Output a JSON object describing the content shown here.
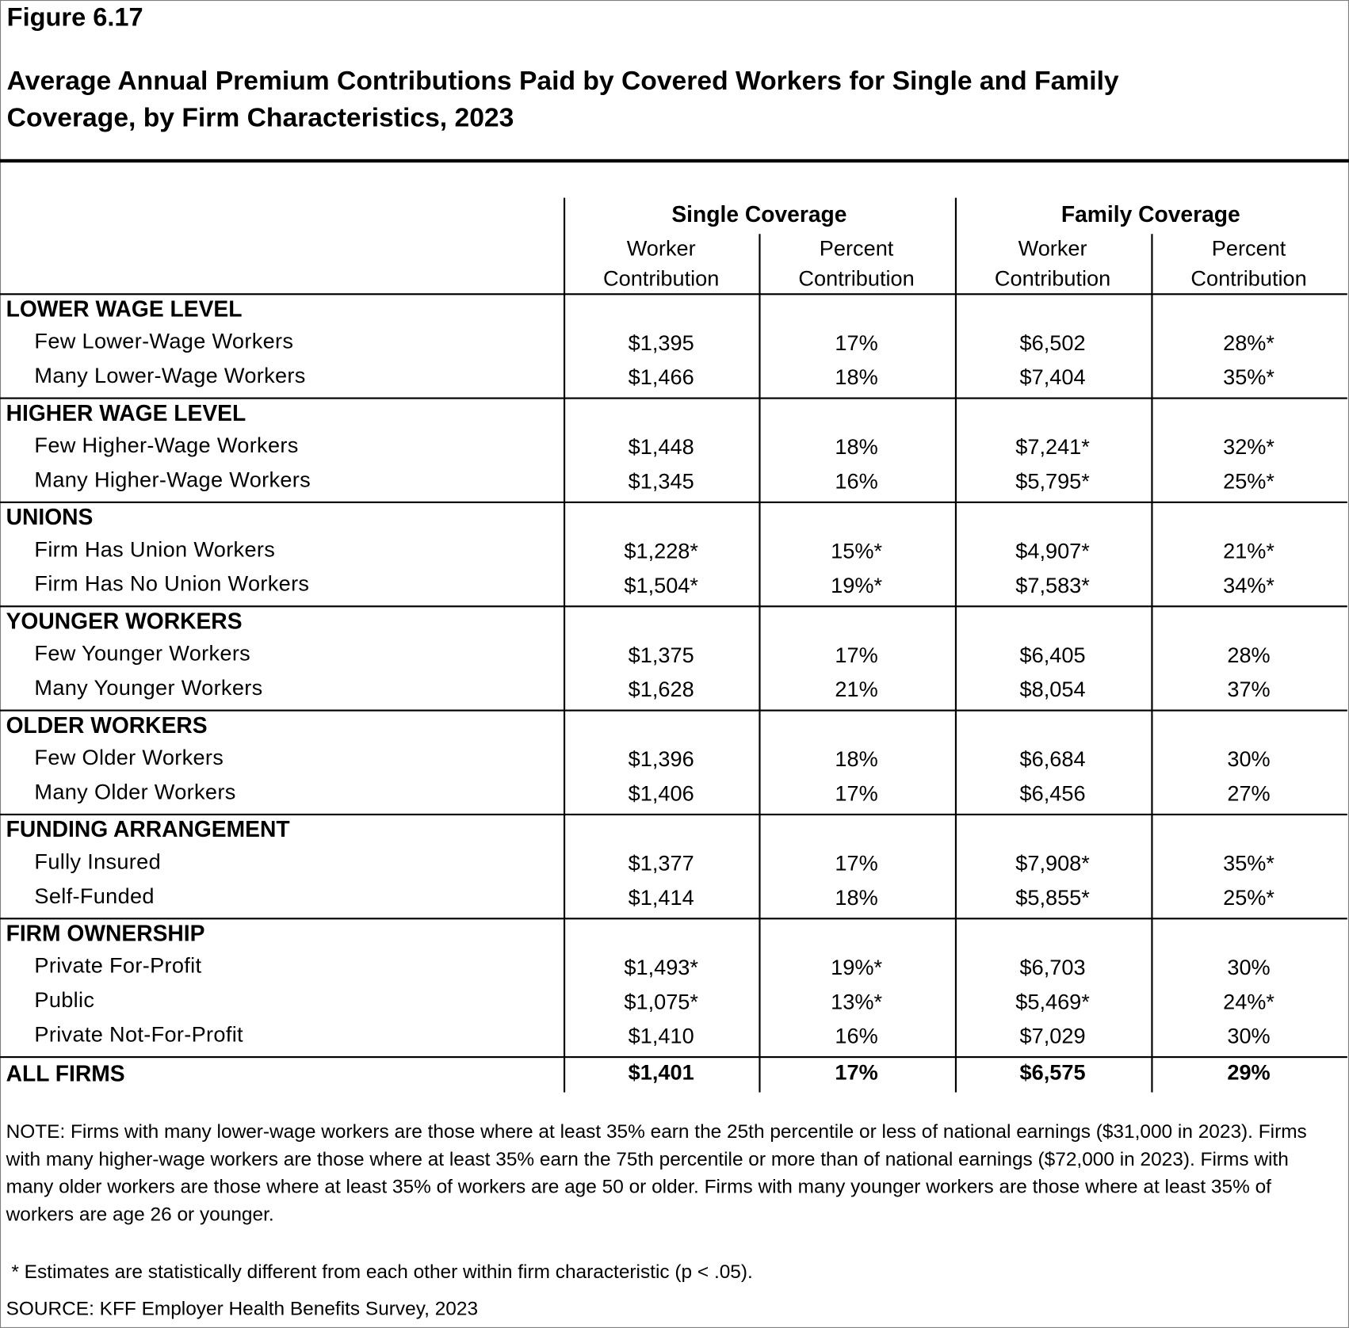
{
  "header": {
    "figure": "Figure 6.17",
    "title": "Average Annual Premium Contributions Paid by Covered Workers for Single and Family Coverage, by Firm Characteristics, 2023"
  },
  "table": {
    "groups": [
      "Single Coverage",
      "Family Coverage"
    ],
    "columns": [
      "Worker Contribution",
      "Percent Contribution",
      "Worker Contribution",
      "Percent Contribution"
    ],
    "sections": [
      {
        "title": "LOWER WAGE LEVEL",
        "rows": [
          {
            "label": "Few Lower-Wage Workers",
            "cells": [
              "$1,395",
              "17%",
              "$6,502",
              "28%*"
            ]
          },
          {
            "label": "Many Lower-Wage Workers",
            "cells": [
              "$1,466",
              "18%",
              "$7,404",
              "35%*"
            ]
          }
        ]
      },
      {
        "title": "HIGHER WAGE LEVEL",
        "rows": [
          {
            "label": "Few Higher-Wage Workers",
            "cells": [
              "$1,448",
              "18%",
              "$7,241*",
              "32%*"
            ]
          },
          {
            "label": "Many Higher-Wage Workers",
            "cells": [
              "$1,345",
              "16%",
              "$5,795*",
              "25%*"
            ]
          }
        ]
      },
      {
        "title": "UNIONS",
        "rows": [
          {
            "label": "Firm Has Union Workers",
            "cells": [
              "$1,228*",
              "15%*",
              "$4,907*",
              "21%*"
            ]
          },
          {
            "label": "Firm Has No Union Workers",
            "cells": [
              "$1,504*",
              "19%*",
              "$7,583*",
              "34%*"
            ]
          }
        ]
      },
      {
        "title": "YOUNGER WORKERS",
        "rows": [
          {
            "label": "Few Younger Workers",
            "cells": [
              "$1,375",
              "17%",
              "$6,405",
              "28%"
            ]
          },
          {
            "label": "Many Younger Workers",
            "cells": [
              "$1,628",
              "21%",
              "$8,054",
              "37%"
            ]
          }
        ]
      },
      {
        "title": "OLDER WORKERS",
        "rows": [
          {
            "label": "Few Older Workers",
            "cells": [
              "$1,396",
              "18%",
              "$6,684",
              "30%"
            ]
          },
          {
            "label": "Many Older Workers",
            "cells": [
              "$1,406",
              "17%",
              "$6,456",
              "27%"
            ]
          }
        ]
      },
      {
        "title": "FUNDING ARRANGEMENT",
        "rows": [
          {
            "label": "Fully Insured",
            "cells": [
              "$1,377",
              "17%",
              "$7,908*",
              "35%*"
            ]
          },
          {
            "label": "Self-Funded",
            "cells": [
              "$1,414",
              "18%",
              "$5,855*",
              "25%*"
            ]
          }
        ]
      },
      {
        "title": "FIRM OWNERSHIP",
        "rows": [
          {
            "label": "Private For-Profit",
            "cells": [
              "$1,493*",
              "19%*",
              "$6,703",
              "30%"
            ]
          },
          {
            "label": "Public",
            "cells": [
              "$1,075*",
              "13%*",
              "$5,469*",
              "24%*"
            ]
          },
          {
            "label": "Private Not-For-Profit",
            "cells": [
              "$1,410",
              "16%",
              "$7,029",
              "30%"
            ]
          }
        ]
      }
    ],
    "total": {
      "label": "ALL FIRMS",
      "cells": [
        "$1,401",
        "17%",
        "$6,575",
        "29%"
      ]
    }
  },
  "notes": {
    "note": "NOTE: Firms with many lower-wage workers are those where at least 35% earn the 25th percentile or less of national earnings ($31,000 in 2023). Firms with many higher-wage workers are those where at least 35% earn the 75th percentile or more than of national earnings ($72,000 in 2023). Firms with many older workers are those where at least 35% of workers are age 50 or older. Firms with many younger workers are those where at least 35% of workers are age 26 or younger.",
    "significance": " * Estimates are statistically different from each other within firm characteristic (p < .05).",
    "source": "SOURCE: KFF Employer Health Benefits Survey, 2023"
  }
}
